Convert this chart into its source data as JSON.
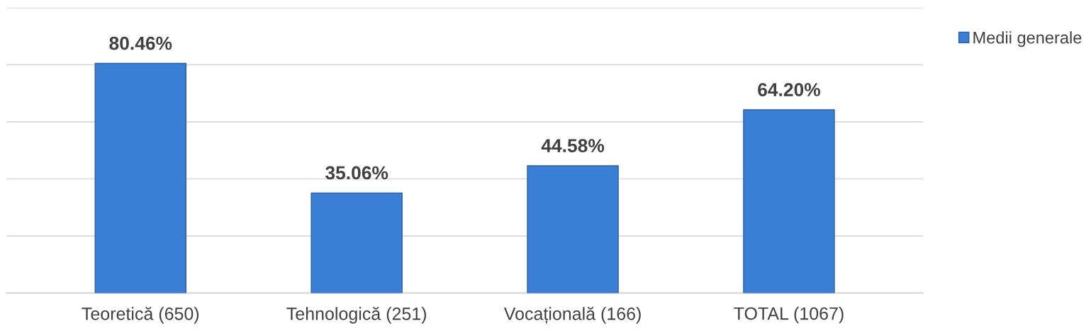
{
  "chart_data": {
    "type": "bar",
    "categories": [
      "Teoretică (650)",
      "Tehnologică (251)",
      "Vocațională (166)",
      "TOTAL (1067)"
    ],
    "series": [
      {
        "name": "Medii generale",
        "color": "#3a7fd6",
        "values": [
          80.46,
          35.06,
          44.58,
          64.2
        ],
        "value_labels": [
          "80.46%",
          "35.06%",
          "44.58%",
          "64.20%"
        ]
      }
    ],
    "ylim": [
      0,
      100
    ],
    "yticks": [
      {
        "value": 0,
        "label": null
      },
      {
        "value": 20,
        "label": null
      },
      {
        "value": 40,
        "label": null
      },
      {
        "value": 60,
        "label": null
      },
      {
        "value": 80,
        "label": null
      },
      {
        "value": 100,
        "label": null
      }
    ],
    "grid": "y",
    "legend": "top right"
  }
}
